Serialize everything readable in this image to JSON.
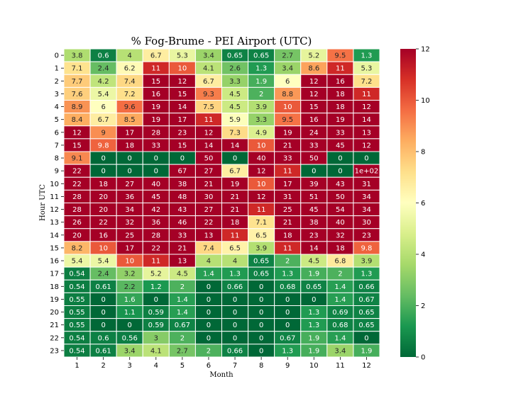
{
  "chart_data": {
    "type": "heatmap",
    "title": "% Fog-Brume - PEI Airport (UTC)",
    "xlabel": "Month",
    "ylabel": "Hour UTC",
    "x_categories": [
      "1",
      "2",
      "3",
      "4",
      "5",
      "6",
      "7",
      "8",
      "9",
      "10",
      "11",
      "12"
    ],
    "y_categories": [
      "0",
      "1",
      "2",
      "3",
      "4",
      "5",
      "6",
      "7",
      "8",
      "9",
      "10",
      "11",
      "12",
      "13",
      "14",
      "15",
      "16",
      "17",
      "18",
      "19",
      "20",
      "21",
      "22",
      "23"
    ],
    "values": [
      [
        3.8,
        0.6,
        4,
        6.7,
        5.3,
        3.4,
        0.65,
        0.65,
        2.7,
        5.2,
        9.5,
        1.3
      ],
      [
        7.1,
        2.4,
        6.2,
        11,
        10,
        4.1,
        2.6,
        1.3,
        3.4,
        8.6,
        11,
        5.3
      ],
      [
        7.7,
        4.2,
        7.4,
        15,
        12,
        6.7,
        3.3,
        1.9,
        6,
        12,
        16,
        7.2
      ],
      [
        7.6,
        5.4,
        7.2,
        16,
        15,
        9.3,
        4.5,
        2,
        8.8,
        12,
        18,
        11
      ],
      [
        8.9,
        6,
        9.6,
        19,
        14,
        7.5,
        4.5,
        3.9,
        10,
        15,
        18,
        12
      ],
      [
        8.4,
        6.7,
        8.5,
        19,
        17,
        11,
        5.9,
        3.3,
        9.5,
        16,
        19,
        14
      ],
      [
        12,
        9,
        17,
        28,
        23,
        12,
        7.3,
        4.9,
        19,
        24,
        33,
        13
      ],
      [
        15,
        9.8,
        18,
        33,
        15,
        14,
        14,
        10,
        21,
        33,
        45,
        12
      ],
      [
        9.1,
        0,
        0,
        0,
        0,
        50,
        0,
        40,
        33,
        50,
        0,
        0
      ],
      [
        22,
        0,
        0,
        0,
        67,
        27,
        6.7,
        12,
        11,
        0,
        0,
        100
      ],
      [
        22,
        18,
        27,
        40,
        38,
        21,
        19,
        10,
        17,
        39,
        43,
        31
      ],
      [
        28,
        20,
        36,
        45,
        48,
        30,
        21,
        12,
        31,
        51,
        50,
        34
      ],
      [
        28,
        20,
        34,
        42,
        43,
        27,
        21,
        11,
        25,
        45,
        54,
        34
      ],
      [
        26,
        22,
        32,
        36,
        46,
        22,
        18,
        7.1,
        21,
        38,
        40,
        30
      ],
      [
        20,
        16,
        25,
        28,
        33,
        13,
        11,
        6.5,
        18,
        23,
        32,
        23
      ],
      [
        8.2,
        10,
        17,
        22,
        21,
        7.4,
        6.5,
        3.9,
        11,
        14,
        18,
        9.8
      ],
      [
        5.4,
        5.4,
        10,
        11,
        13,
        4,
        4,
        0.65,
        2,
        4.5,
        6.8,
        3.9
      ],
      [
        0.54,
        2.4,
        3.2,
        5.2,
        4.5,
        1.4,
        1.3,
        0.65,
        1.3,
        1.9,
        2,
        1.3
      ],
      [
        0.54,
        0.61,
        2.2,
        1.2,
        2,
        0,
        0.66,
        0,
        0.68,
        0.65,
        1.4,
        0.66
      ],
      [
        0.55,
        0,
        1.6,
        0,
        1.4,
        0,
        0,
        0,
        0,
        0,
        1.4,
        0.67
      ],
      [
        0.55,
        0,
        1.1,
        0.59,
        1.4,
        0,
        0,
        0,
        0,
        1.3,
        0.69,
        0.65
      ],
      [
        0.55,
        0,
        0,
        0.59,
        0.67,
        0,
        0,
        0,
        0,
        1.3,
        0.68,
        0.65
      ],
      [
        0.54,
        0.6,
        0.56,
        3,
        2,
        0,
        0,
        0,
        0.67,
        1.9,
        1.4,
        0
      ],
      [
        0.54,
        0.61,
        3.4,
        4.1,
        2.7,
        2,
        0.66,
        0,
        1.3,
        1.9,
        3.4,
        1.9
      ]
    ],
    "annotations": [
      [
        "3.8",
        "0.6",
        "4",
        "6.7",
        "5.3",
        "3.4",
        "0.65",
        "0.65",
        "2.7",
        "5.2",
        "9.5",
        "1.3"
      ],
      [
        "7.1",
        "2.4",
        "6.2",
        "11",
        "10",
        "4.1",
        "2.6",
        "1.3",
        "3.4",
        "8.6",
        "11",
        "5.3"
      ],
      [
        "7.7",
        "4.2",
        "7.4",
        "15",
        "12",
        "6.7",
        "3.3",
        "1.9",
        "6",
        "12",
        "16",
        "7.2"
      ],
      [
        "7.6",
        "5.4",
        "7.2",
        "16",
        "15",
        "9.3",
        "4.5",
        "2",
        "8.8",
        "12",
        "18",
        "11"
      ],
      [
        "8.9",
        "6",
        "9.6",
        "19",
        "14",
        "7.5",
        "4.5",
        "3.9",
        "10",
        "15",
        "18",
        "12"
      ],
      [
        "8.4",
        "6.7",
        "8.5",
        "19",
        "17",
        "11",
        "5.9",
        "3.3",
        "9.5",
        "16",
        "19",
        "14"
      ],
      [
        "12",
        "9",
        "17",
        "28",
        "23",
        "12",
        "7.3",
        "4.9",
        "19",
        "24",
        "33",
        "13"
      ],
      [
        "15",
        "9.8",
        "18",
        "33",
        "15",
        "14",
        "14",
        "10",
        "21",
        "33",
        "45",
        "12"
      ],
      [
        "9.1",
        "0",
        "0",
        "0",
        "0",
        "50",
        "0",
        "40",
        "33",
        "50",
        "0",
        "0"
      ],
      [
        "22",
        "0",
        "0",
        "0",
        "67",
        "27",
        "6.7",
        "12",
        "11",
        "0",
        "0",
        "1e+02"
      ],
      [
        "22",
        "18",
        "27",
        "40",
        "38",
        "21",
        "19",
        "10",
        "17",
        "39",
        "43",
        "31"
      ],
      [
        "28",
        "20",
        "36",
        "45",
        "48",
        "30",
        "21",
        "12",
        "31",
        "51",
        "50",
        "34"
      ],
      [
        "28",
        "20",
        "34",
        "42",
        "43",
        "27",
        "21",
        "11",
        "25",
        "45",
        "54",
        "34"
      ],
      [
        "26",
        "22",
        "32",
        "36",
        "46",
        "22",
        "18",
        "7.1",
        "21",
        "38",
        "40",
        "30"
      ],
      [
        "20",
        "16",
        "25",
        "28",
        "33",
        "13",
        "11",
        "6.5",
        "18",
        "23",
        "32",
        "23"
      ],
      [
        "8.2",
        "10",
        "17",
        "22",
        "21",
        "7.4",
        "6.5",
        "3.9",
        "11",
        "14",
        "18",
        "9.8"
      ],
      [
        "5.4",
        "5.4",
        "10",
        "11",
        "13",
        "4",
        "4",
        "0.65",
        "2",
        "4.5",
        "6.8",
        "3.9"
      ],
      [
        "0.54",
        "2.4",
        "3.2",
        "5.2",
        "4.5",
        "1.4",
        "1.3",
        "0.65",
        "1.3",
        "1.9",
        "2",
        "1.3"
      ],
      [
        "0.54",
        "0.61",
        "2.2",
        "1.2",
        "2",
        "0",
        "0.66",
        "0",
        "0.68",
        "0.65",
        "1.4",
        "0.66"
      ],
      [
        "0.55",
        "0",
        "1.6",
        "0",
        "1.4",
        "0",
        "0",
        "0",
        "0",
        "0",
        "1.4",
        "0.67"
      ],
      [
        "0.55",
        "0",
        "1.1",
        "0.59",
        "1.4",
        "0",
        "0",
        "0",
        "0",
        "1.3",
        "0.69",
        "0.65"
      ],
      [
        "0.55",
        "0",
        "0",
        "0.59",
        "0.67",
        "0",
        "0",
        "0",
        "0",
        "1.3",
        "0.68",
        "0.65"
      ],
      [
        "0.54",
        "0.6",
        "0.56",
        "3",
        "2",
        "0",
        "0",
        "0",
        "0.67",
        "1.9",
        "1.4",
        "0"
      ],
      [
        "0.54",
        "0.61",
        "3.4",
        "4.1",
        "2.7",
        "2",
        "0.66",
        "0",
        "1.3",
        "1.9",
        "3.4",
        "1.9"
      ]
    ],
    "color_scale": {
      "name": "RdYlGn_r",
      "vmin": 0,
      "vmax": 12,
      "ticks": [
        0,
        2,
        4,
        6,
        8,
        10,
        12
      ]
    },
    "grid": false,
    "colorbar_placement": "right"
  }
}
